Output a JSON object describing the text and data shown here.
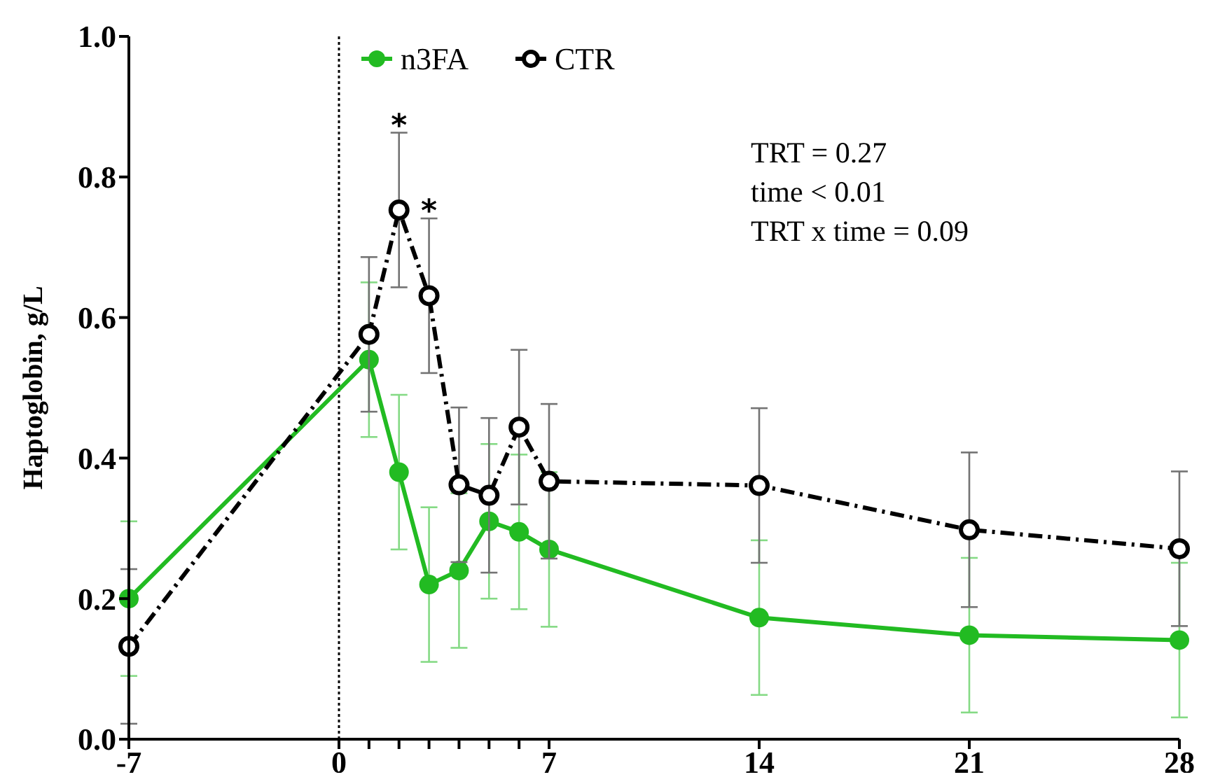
{
  "chart_data": {
    "type": "line",
    "ylabel": "Haptoglobin, g/L",
    "x": [
      -7,
      1,
      2,
      3,
      4,
      5,
      6,
      7,
      14,
      21,
      28
    ],
    "xlim": [
      -7,
      28
    ],
    "xticks": [
      -7,
      0,
      {
        "value": 1,
        "label": null
      },
      {
        "value": 2,
        "label": null
      },
      {
        "value": 3,
        "label": null
      },
      {
        "value": 4,
        "label": null
      },
      {
        "value": 5,
        "label": null
      },
      {
        "value": 6,
        "label": null
      },
      7,
      14,
      21,
      28
    ],
    "ylim": [
      0,
      1
    ],
    "yticks": [
      {
        "value": 0,
        "label": "0.0"
      },
      0.2,
      0.4,
      0.6,
      0.8,
      {
        "value": 1,
        "label": "1.0"
      }
    ],
    "series": [
      {
        "name": "n3FA",
        "color": "#22bb22",
        "line_style": "solid",
        "values": [
          0.2,
          0.54,
          0.38,
          0.22,
          0.24,
          0.31,
          0.295,
          0.27,
          0.173,
          0.148,
          0.141
        ],
        "errors": [
          0.11,
          0.11,
          0.11,
          0.11,
          0.11,
          0.11,
          0.11,
          0.11,
          0.11,
          0.11,
          0.11
        ]
      },
      {
        "name": "CTR",
        "color": "#000000",
        "line_style": "dashed",
        "values": [
          0.132,
          0.576,
          0.753,
          0.631,
          0.362,
          0.347,
          0.444,
          0.367,
          0.361,
          0.298,
          0.271
        ],
        "errors": [
          0.11,
          0.11,
          0.11,
          0.11,
          0.11,
          0.11,
          0.11,
          0.11,
          0.11,
          0.11,
          0.11
        ]
      }
    ],
    "ref_lines": [
      {
        "axis": "x",
        "value": 0,
        "color": "#000000",
        "line_style": "dotted"
      }
    ],
    "annotations": [
      {
        "text": "*",
        "x": 2,
        "y": 0.863
      },
      {
        "text": "*",
        "x": 3,
        "y": 0.741
      },
      "TRT = 0.27",
      "time < 0.01",
      "TRT x time = 0.09"
    ],
    "marker": "circle",
    "legend": "top",
    "grid": false
  }
}
